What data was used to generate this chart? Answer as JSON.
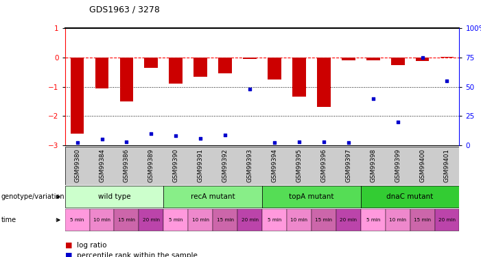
{
  "title": "GDS1963 / 3278",
  "samples": [
    "GSM99380",
    "GSM99384",
    "GSM99386",
    "GSM99389",
    "GSM99390",
    "GSM99391",
    "GSM99392",
    "GSM99393",
    "GSM99394",
    "GSM99395",
    "GSM99396",
    "GSM99397",
    "GSM99398",
    "GSM99399",
    "GSM99400",
    "GSM99401"
  ],
  "log_ratio": [
    -2.6,
    -1.05,
    -1.5,
    -0.35,
    -0.9,
    -0.65,
    -0.55,
    -0.05,
    -0.75,
    -1.35,
    -1.7,
    -0.1,
    -0.1,
    -0.25,
    -0.12,
    0.02
  ],
  "percentile_rank": [
    2,
    5,
    3,
    10,
    8,
    6,
    9,
    48,
    2,
    3,
    3,
    2,
    40,
    20,
    75,
    55
  ],
  "ylim_left": [
    -3,
    1
  ],
  "ylim_right": [
    0,
    100
  ],
  "yticks_left": [
    1,
    0,
    -1,
    -2,
    -3
  ],
  "yticks_right": [
    100,
    75,
    50,
    25,
    0
  ],
  "bar_color": "#cc0000",
  "dot_color": "#0000cc",
  "groups": [
    {
      "label": "wild type",
      "start": 0,
      "end": 4,
      "color": "#ccffcc"
    },
    {
      "label": "recA mutant",
      "start": 4,
      "end": 8,
      "color": "#88ee88"
    },
    {
      "label": "topA mutant",
      "start": 8,
      "end": 12,
      "color": "#55dd55"
    },
    {
      "label": "dnaC mutant",
      "start": 12,
      "end": 16,
      "color": "#33cc33"
    }
  ],
  "time_colors_cycle": [
    "#ff99dd",
    "#ee88cc",
    "#cc66aa",
    "#bb44aa"
  ],
  "time_labels": [
    "5 min",
    "10 min",
    "15 min",
    "20 min",
    "5 min",
    "10 min",
    "15 min",
    "20 min",
    "5 min",
    "10 min",
    "15 min",
    "20 min",
    "5 min",
    "10 min",
    "15 min",
    "20 min"
  ],
  "xlabel_label": "genotype/variation",
  "time_row_label": "time",
  "legend_items": [
    "log ratio",
    "percentile rank within the sample"
  ],
  "bar_width": 0.55
}
